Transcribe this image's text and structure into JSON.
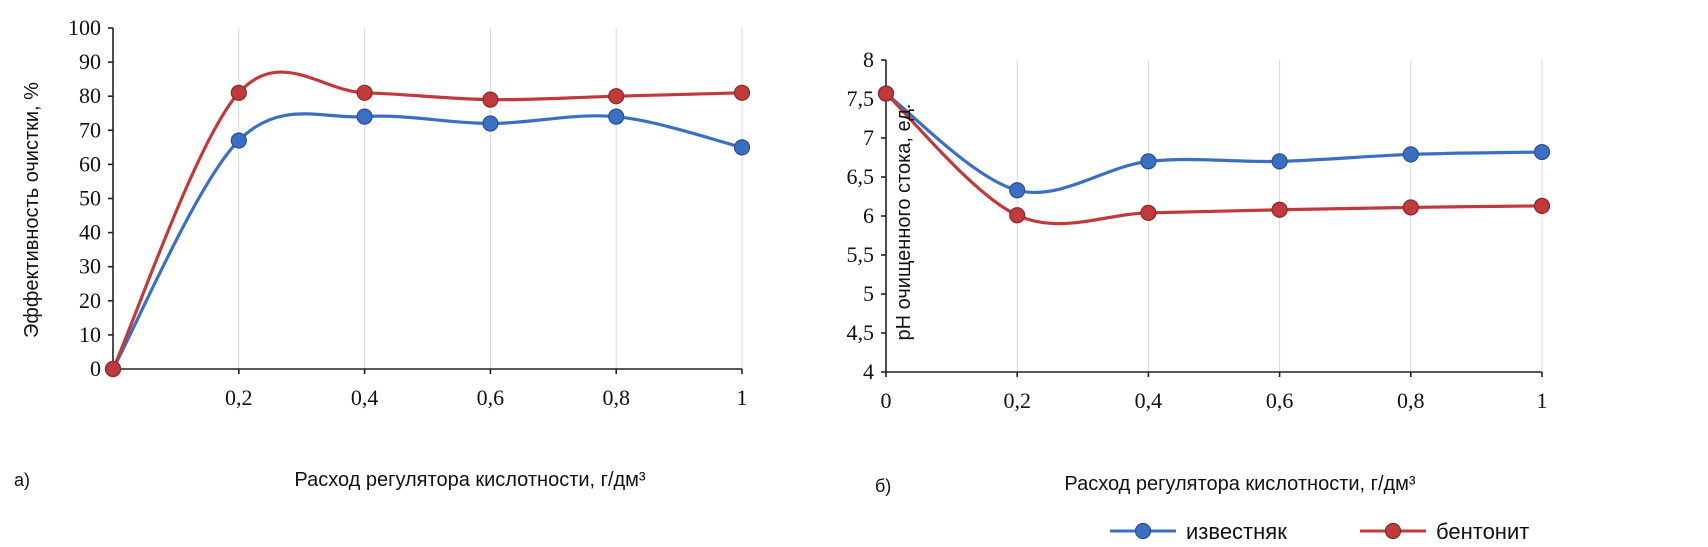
{
  "chart_data": [
    {
      "type": "line",
      "panel_label": "а)",
      "xlabel": "Расход регулятора кислотности, г/дм³",
      "ylabel": "Эффективность очистки, %",
      "x": [
        0,
        0.2,
        0.4,
        0.6,
        0.8,
        1
      ],
      "x_tick_labels": [
        "",
        "0,2",
        "0,4",
        "0,6",
        "0,8",
        "1"
      ],
      "xlim": [
        0,
        1
      ],
      "ylim": [
        0,
        100
      ],
      "y_ticks": [
        0,
        10,
        20,
        30,
        40,
        50,
        60,
        70,
        80,
        90,
        100
      ],
      "y_tick_labels": [
        "0",
        "10",
        "20",
        "30",
        "40",
        "50",
        "60",
        "70",
        "80",
        "90",
        "100"
      ],
      "grid": "vertical",
      "series": [
        {
          "name": "известняк",
          "color": "#3b6fc4",
          "values": [
            0,
            67,
            74,
            72,
            74,
            65
          ]
        },
        {
          "name": "бентонит",
          "color": "#c0393b",
          "values": [
            0,
            81,
            81,
            79,
            80,
            81
          ]
        }
      ]
    },
    {
      "type": "line",
      "panel_label": "б)",
      "xlabel": "Расход регулятора кислотности, г/дм³",
      "ylabel": "pH очищенного стока, ед.",
      "x": [
        0,
        0.2,
        0.4,
        0.6,
        0.8,
        1
      ],
      "x_tick_labels": [
        "0",
        "0,2",
        "0,4",
        "0,6",
        "0,8",
        "1"
      ],
      "xlim": [
        0,
        1
      ],
      "ylim": [
        4,
        8
      ],
      "y_ticks": [
        4,
        4.5,
        5,
        5.5,
        6,
        6.5,
        7,
        7.5,
        8
      ],
      "y_tick_labels": [
        "4",
        "4,5",
        "5",
        "5,5",
        "6",
        "6,5",
        "7",
        "7,5",
        "8"
      ],
      "grid": "vertical",
      "legend_position": "bottom",
      "series": [
        {
          "name": "известняк",
          "color": "#3b6fc4",
          "values": [
            7.57,
            6.33,
            6.7,
            6.7,
            6.79,
            6.82
          ]
        },
        {
          "name": "бентонит",
          "color": "#c0393b",
          "values": [
            7.57,
            6.01,
            6.04,
            6.08,
            6.11,
            6.13
          ]
        }
      ]
    }
  ]
}
